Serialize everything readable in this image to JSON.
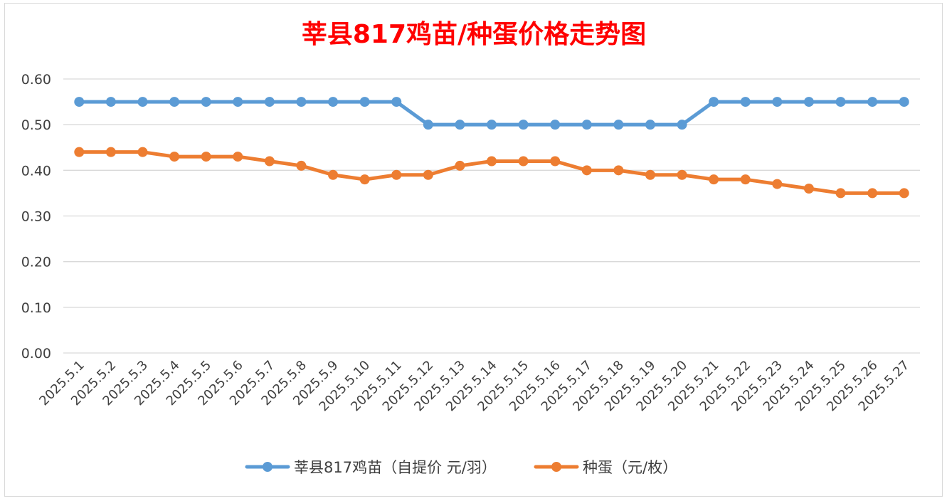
{
  "chart_data": {
    "type": "line",
    "title": "莘县817鸡苗/种蛋价格走势图",
    "xlabel": "",
    "ylabel": "",
    "ylim": [
      0,
      0.6
    ],
    "yticks": [
      "0.00",
      "0.10",
      "0.20",
      "0.30",
      "0.40",
      "0.50",
      "0.60"
    ],
    "grid": true,
    "legend_position": "bottom",
    "categories": [
      "2025.5.1",
      "2025.5.2",
      "2025.5.3",
      "2025.5.4",
      "2025.5.5",
      "2025.5.6",
      "2025.5.7",
      "2025.5.8",
      "2025.5.9",
      "2025.5.10",
      "2025.5.11",
      "2025.5.12",
      "2025.5.13",
      "2025.5.14",
      "2025.5.15",
      "2025.5.16",
      "2025.5.17",
      "2025.5.18",
      "2025.5.19",
      "2025.5.20",
      "2025.5.21",
      "2025.5.22",
      "2025.5.23",
      "2025.5.24",
      "2025.5.25",
      "2025.5.26",
      "2025.5.27"
    ],
    "series": [
      {
        "name": "莘县817鸡苗（自提价 元/羽）",
        "color": "#5b9bd5",
        "values": [
          0.55,
          0.55,
          0.55,
          0.55,
          0.55,
          0.55,
          0.55,
          0.55,
          0.55,
          0.55,
          0.55,
          0.5,
          0.5,
          0.5,
          0.5,
          0.5,
          0.5,
          0.5,
          0.5,
          0.5,
          0.55,
          0.55,
          0.55,
          0.55,
          0.55,
          0.55,
          0.55
        ]
      },
      {
        "name": "种蛋（元/枚）",
        "color": "#ed7d31",
        "values": [
          0.44,
          0.44,
          0.44,
          0.43,
          0.43,
          0.43,
          0.42,
          0.41,
          0.39,
          0.38,
          0.39,
          0.39,
          0.41,
          0.42,
          0.42,
          0.42,
          0.4,
          0.4,
          0.39,
          0.39,
          0.38,
          0.38,
          0.37,
          0.36,
          0.35,
          0.35,
          0.35
        ]
      }
    ]
  },
  "colors": {
    "title": "#ff0000",
    "grid": "#d9d9d9",
    "text": "#404040"
  }
}
